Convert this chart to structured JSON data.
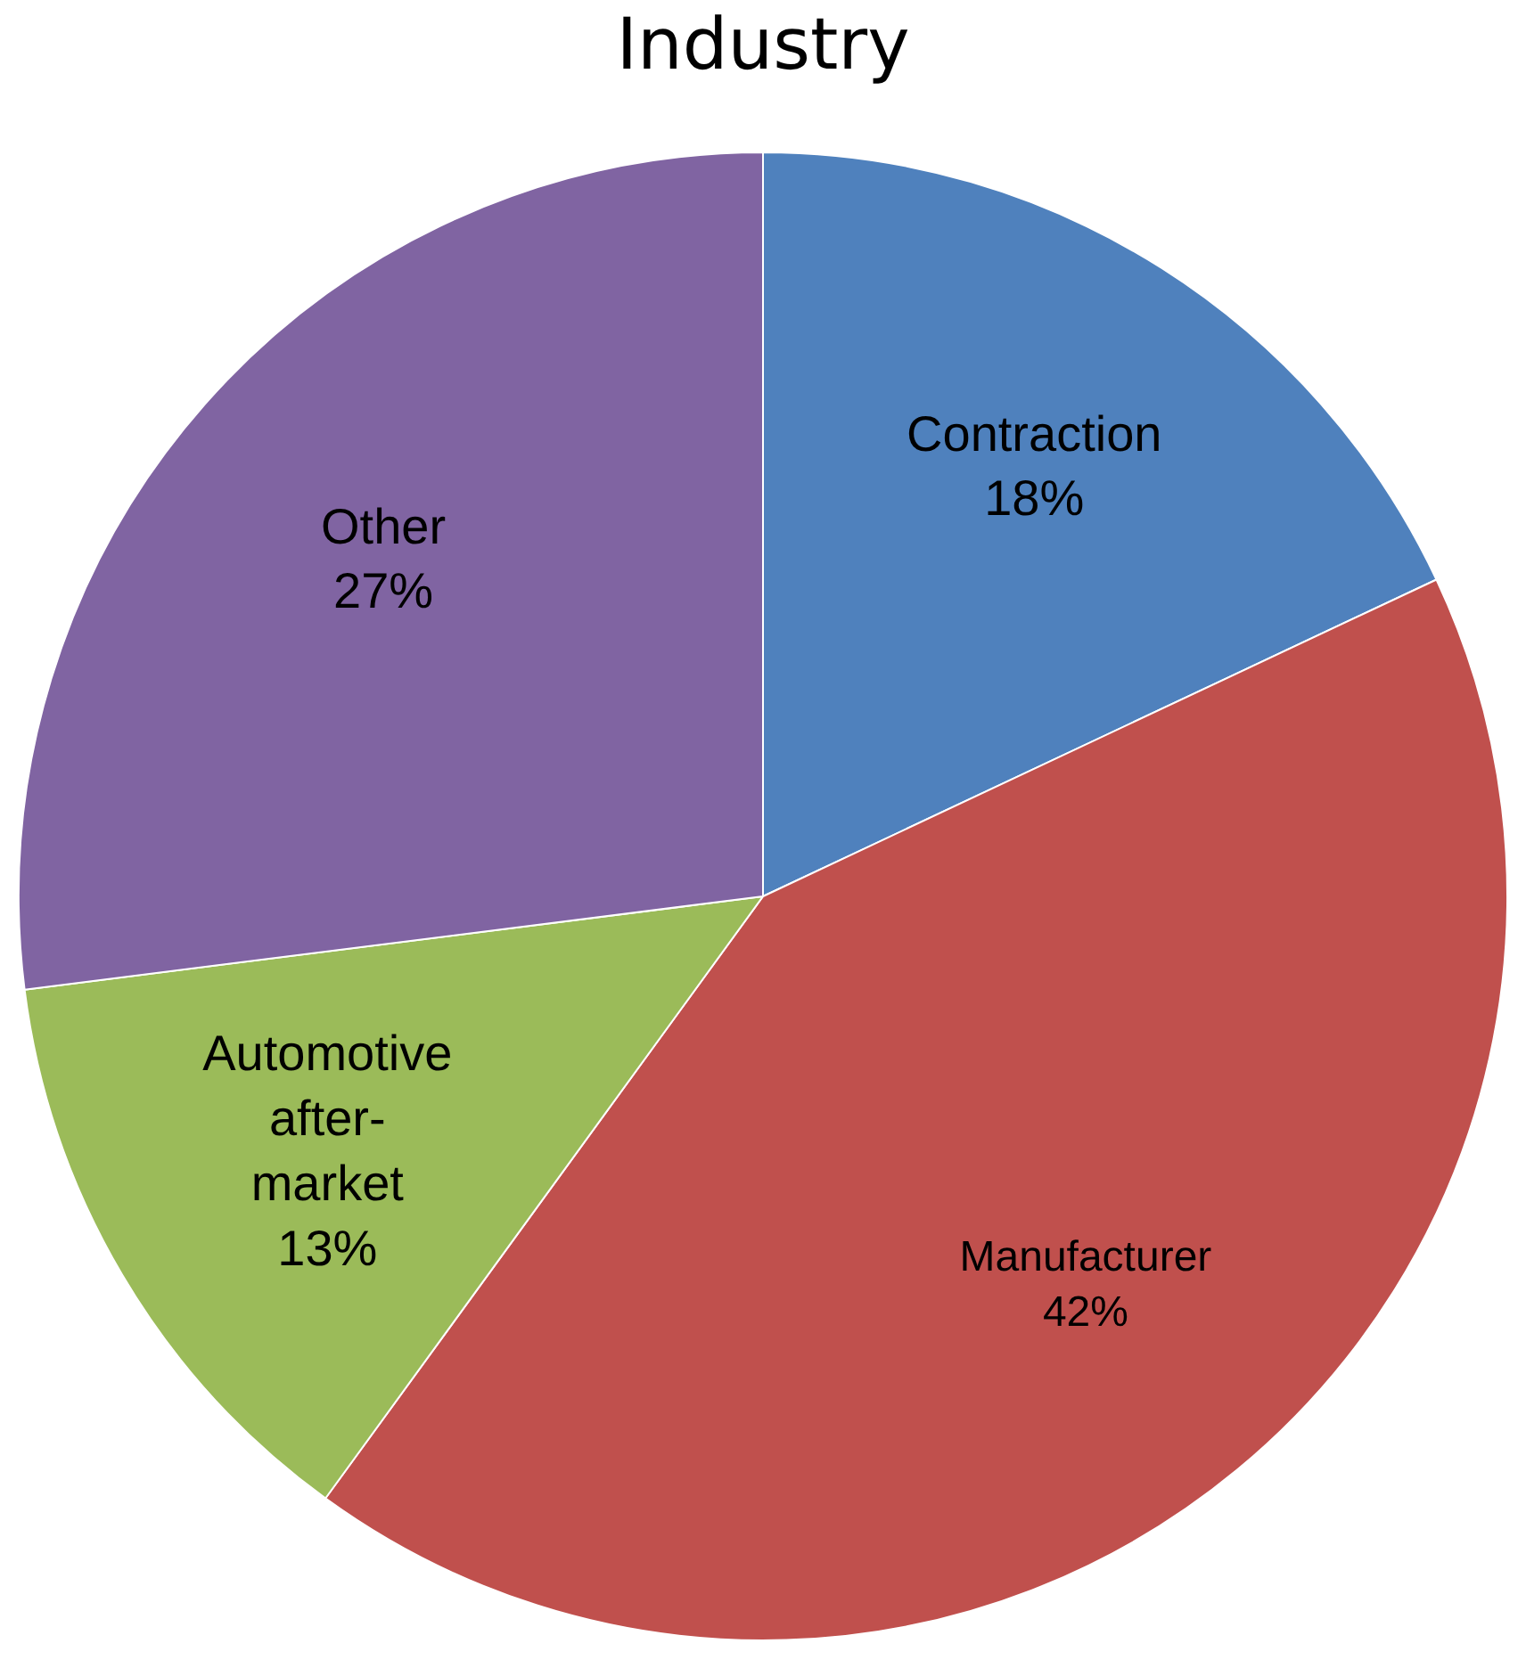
{
  "chart_data": {
    "type": "pie",
    "title": "Industry",
    "categories": [
      "Contraction",
      "Manufacturer",
      "Automotive after-market",
      "Other"
    ],
    "values": [
      18,
      42,
      13,
      27
    ],
    "colors": [
      "#4f81bd",
      "#c0504d",
      "#9bbb59",
      "#8064a2"
    ],
    "value_labels": [
      "18%",
      "42%",
      "13%",
      "27%"
    ],
    "legend": false
  }
}
